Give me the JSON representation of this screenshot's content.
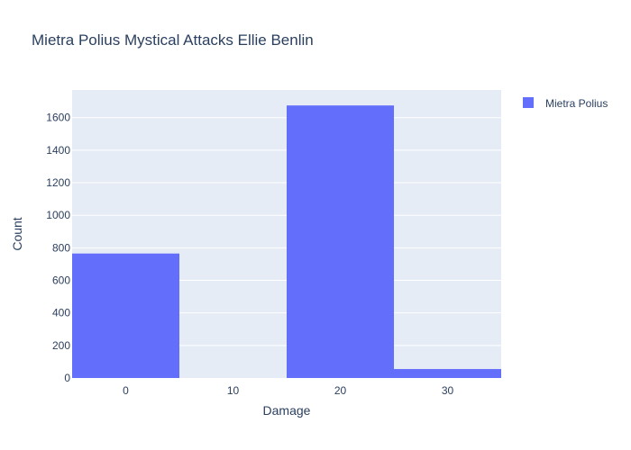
{
  "chart_data": {
    "type": "bar",
    "title": "Mietra Polius Mystical Attacks Ellie Benlin",
    "xlabel": "Damage",
    "ylabel": "Count",
    "categories": [
      0,
      10,
      20,
      30
    ],
    "x_ticks": [
      0,
      10,
      20,
      30
    ],
    "y_ticks": [
      0,
      200,
      400,
      600,
      800,
      1000,
      1200,
      1400,
      1600
    ],
    "ylim": [
      0,
      1770
    ],
    "series": [
      {
        "name": "Mietra Polius",
        "values": [
          765,
          0,
          1675,
          55
        ]
      }
    ],
    "grid": true,
    "legend_position": "top-right",
    "colors": {
      "bar": "#636efa",
      "plot_bg": "#e5ecf6",
      "grid": "#ffffff",
      "text": "#2a3f5f"
    }
  }
}
